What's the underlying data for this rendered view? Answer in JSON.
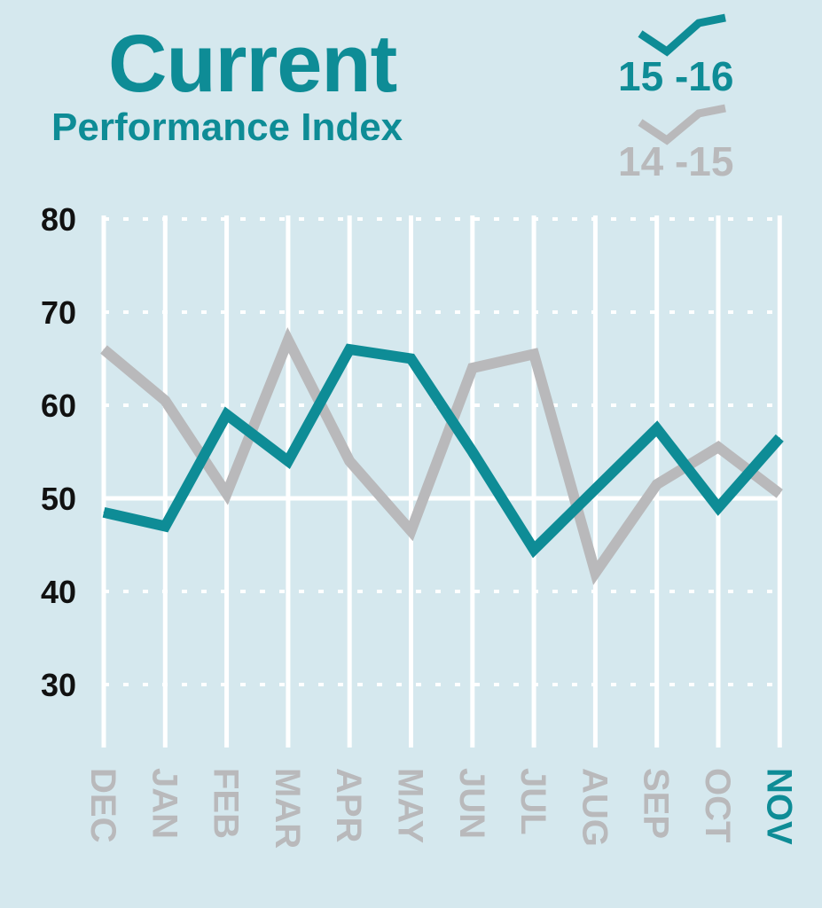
{
  "header": {
    "title": "Current",
    "subtitle": "Performance Index"
  },
  "colors": {
    "background": "#d5e8ee",
    "accent": "#0e8c96",
    "muted": "#b9b9bb",
    "grid": "#ffffff",
    "text": "#111111"
  },
  "legend": {
    "items": [
      {
        "label": "15 -16",
        "color": "#0e8c96",
        "icon": "check-line-icon"
      },
      {
        "label": "14 -15",
        "color": "#b9b9bb",
        "icon": "check-line-icon"
      }
    ]
  },
  "chart_data": {
    "type": "line",
    "title": "Current Performance Index",
    "categories": [
      "DEC",
      "JAN",
      "FEB",
      "MAR",
      "APR",
      "MAY",
      "JUN",
      "JUL",
      "AUG",
      "SEP",
      "OCT",
      "NOV"
    ],
    "highlight_category": "NOV",
    "ylim": [
      22,
      80
    ],
    "yticks": [
      30,
      40,
      50,
      60,
      70,
      80
    ],
    "reference_line": 50,
    "grid": true,
    "legend_position": "top-right",
    "series": [
      {
        "name": "14 -15",
        "color": "#b9b9bb",
        "values": [
          66,
          60.5,
          50.5,
          67,
          54,
          46.5,
          64,
          65.5,
          42,
          51.5,
          55.5,
          50.5
        ]
      },
      {
        "name": "15 -16",
        "color": "#0e8c96",
        "values": [
          48.5,
          47,
          59,
          54,
          66,
          65,
          55,
          44.5,
          51,
          57.5,
          49,
          56.5
        ]
      }
    ]
  }
}
